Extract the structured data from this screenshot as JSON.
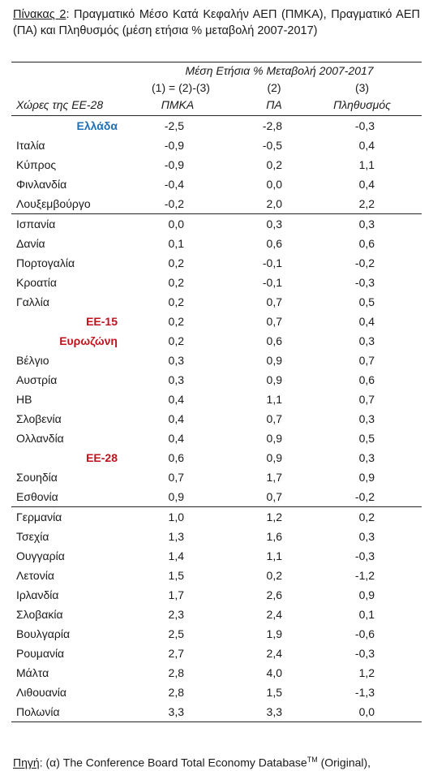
{
  "caption": {
    "label": "Πίνακας 2",
    "text": ": Πραγματικό Μέσο Κατά Κεφαλήν ΑΕΠ (ΠΜΚΑ), Πραγματικό ΑΕΠ (ΠΑ) και Πληθυσμός (μέση ετήσια % μεταβολή 2007-2017)"
  },
  "table": {
    "header": {
      "group_title": "Μέση Ετήσια % Μεταβολή 2007-2017",
      "column_numbers": [
        "(1) = (2)-(3)",
        "(2)",
        "(3)"
      ],
      "columns": [
        "Χώρες της ΕΕ-28",
        "ΠΜΚΑ",
        "ΠΑ",
        "Πληθυσμός"
      ]
    },
    "groups": [
      {
        "rows": [
          {
            "cells": [
              "Ελλάδα",
              "-2,5",
              "-2,8",
              "-0,3"
            ],
            "color": "#1f6fb5"
          },
          {
            "cells": [
              "Ιταλία",
              "-0,9",
              "-0,5",
              "0,4"
            ]
          },
          {
            "cells": [
              "Κύπρος",
              "-0,9",
              "0,2",
              "1,1"
            ]
          },
          {
            "cells": [
              "Φινλανδία",
              "-0,4",
              "0,0",
              "0,4"
            ]
          },
          {
            "cells": [
              "Λουξεμβούργο",
              "-0,2",
              "2,0",
              "2,2"
            ]
          }
        ]
      },
      {
        "rows": [
          {
            "cells": [
              "Ισπανία",
              "0,0",
              "0,3",
              "0,3"
            ]
          },
          {
            "cells": [
              "Δανία",
              "0,1",
              "0,6",
              "0,6"
            ]
          },
          {
            "cells": [
              "Πορτογαλία",
              "0,2",
              "-0,1",
              "-0,2"
            ]
          },
          {
            "cells": [
              "Κροατία",
              "0,2",
              "-0,1",
              "-0,3"
            ]
          },
          {
            "cells": [
              "Γαλλία",
              "0,2",
              "0,7",
              "0,5"
            ]
          },
          {
            "cells": [
              "ΕΕ-15",
              "0,2",
              "0,7",
              "0,4"
            ],
            "color": "#c0121c"
          },
          {
            "cells": [
              "Ευρωζώνη",
              "0,2",
              "0,6",
              "0,3"
            ],
            "color": "#c0121c"
          },
          {
            "cells": [
              "Βέλγιο",
              "0,3",
              "0,9",
              "0,7"
            ]
          },
          {
            "cells": [
              "Αυστρία",
              "0,3",
              "0,9",
              "0,6"
            ]
          },
          {
            "cells": [
              "ΗΒ",
              "0,4",
              "1,1",
              "0,7"
            ]
          },
          {
            "cells": [
              "Σλοβενία",
              "0,4",
              "0,7",
              "0,3"
            ]
          },
          {
            "cells": [
              "Ολλανδία",
              "0,4",
              "0,9",
              "0,5"
            ]
          },
          {
            "cells": [
              "ΕΕ-28",
              "0,6",
              "0,9",
              "0,3"
            ],
            "color": "#c0121c"
          },
          {
            "cells": [
              "Σουηδία",
              "0,7",
              "1,7",
              "0,9"
            ]
          },
          {
            "cells": [
              "Εσθονία",
              "0,9",
              "0,7",
              "-0,2"
            ]
          }
        ]
      },
      {
        "rows": [
          {
            "cells": [
              "Γερμανία",
              "1,0",
              "1,2",
              "0,2"
            ]
          },
          {
            "cells": [
              "Τσεχία",
              "1,3",
              "1,6",
              "0,3"
            ]
          },
          {
            "cells": [
              "Ουγγαρία",
              "1,4",
              "1,1",
              "-0,3"
            ]
          },
          {
            "cells": [
              "Λετονία",
              "1,5",
              "0,2",
              "-1,2"
            ]
          },
          {
            "cells": [
              "Ιρλανδία",
              "1,7",
              "2,6",
              "0,9"
            ]
          },
          {
            "cells": [
              "Σλοβακία",
              "2,3",
              "2,4",
              "0,1"
            ]
          },
          {
            "cells": [
              "Βουλγαρία",
              "2,5",
              "1,9",
              "-0,6"
            ]
          },
          {
            "cells": [
              "Ρουμανία",
              "2,7",
              "2,4",
              "-0,3"
            ]
          },
          {
            "cells": [
              "Μάλτα",
              "2,8",
              "4,0",
              "1,2"
            ]
          },
          {
            "cells": [
              "Λιθουανία",
              "2,8",
              "1,5",
              "-1,3"
            ]
          },
          {
            "cells": [
              "Πολωνία",
              "3,3",
              "3,3",
              "0,0"
            ]
          }
        ]
      }
    ]
  },
  "footer": {
    "label": "Πηγή",
    "text": ": (α) The Conference Board Total Economy Database",
    "superscript": "TM",
    "text_after": " (Original),"
  }
}
